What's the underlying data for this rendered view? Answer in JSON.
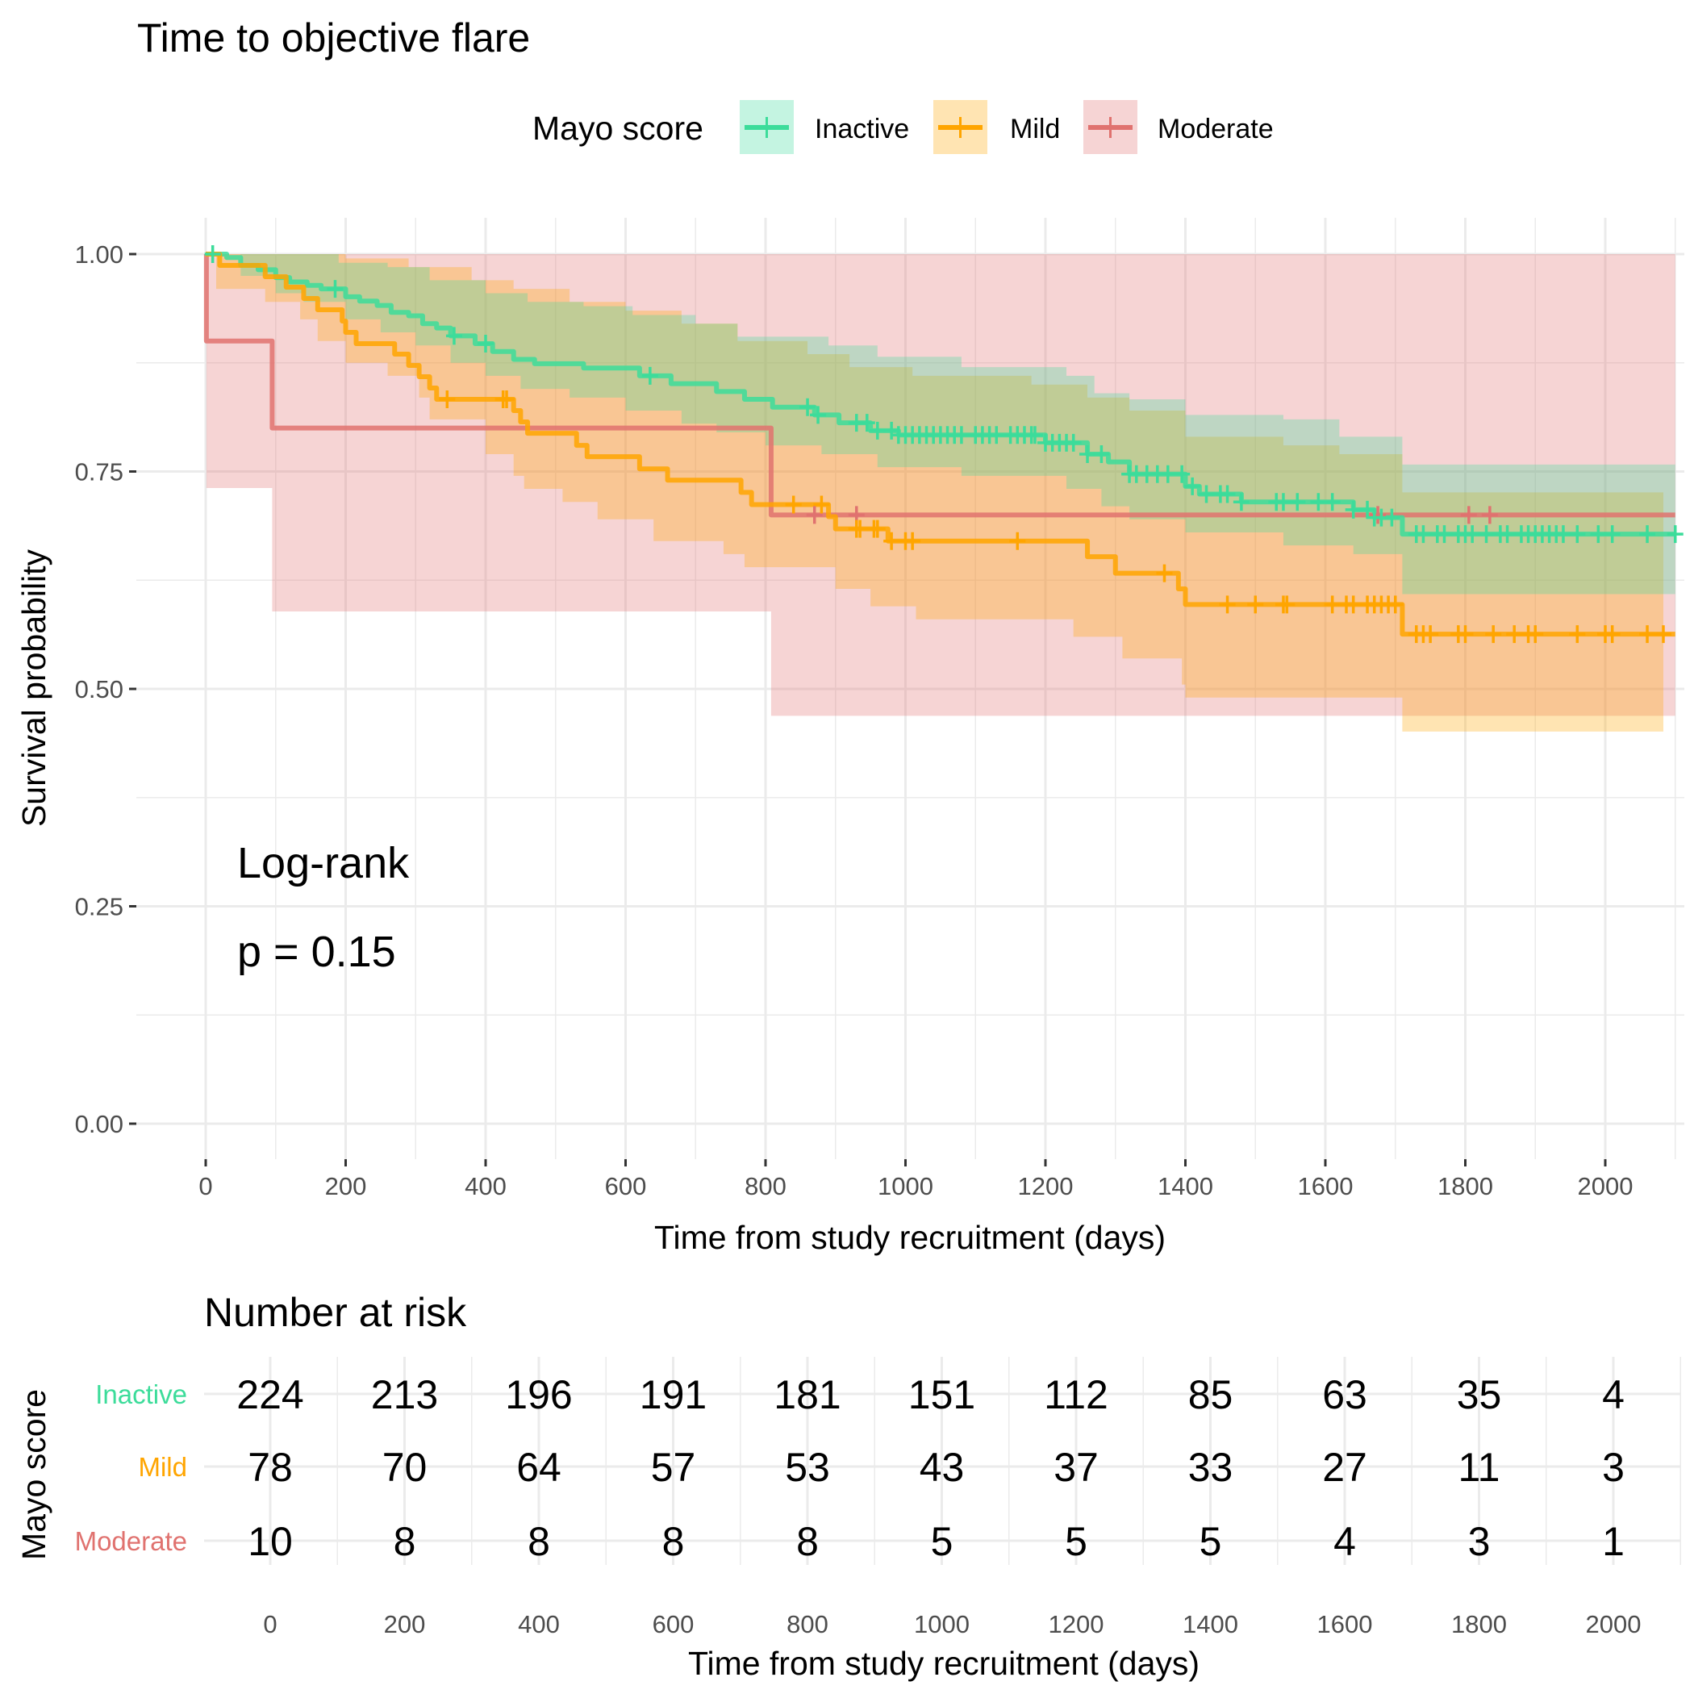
{
  "chart_data": {
    "type": "line",
    "subtype": "kaplan-meier step curves with confidence bands",
    "title": "Time to objective flare",
    "xlabel": "Time from study recruitment (days)",
    "ylabel": "Survival probability",
    "xlim": [
      -100,
      2100
    ],
    "ylim": [
      0,
      1
    ],
    "xticks": [
      0,
      200,
      400,
      600,
      800,
      1000,
      1200,
      1400,
      1600,
      1800,
      2000
    ],
    "xtick_labels": [
      "0",
      "200",
      "400",
      "600",
      "800",
      "1000",
      "1200",
      "1400",
      "1600",
      "1800",
      "2000"
    ],
    "yticks": [
      0,
      0.25,
      0.5,
      0.75,
      1.0
    ],
    "ytick_labels": [
      "0.00",
      "0.25",
      "0.50",
      "0.75",
      "1.00"
    ],
    "grid": true,
    "legend": {
      "title": "Mayo score",
      "position": "top",
      "entries": [
        "Inactive",
        "Mild",
        "Moderate"
      ]
    },
    "annotation": {
      "line1": "Log-rank",
      "line2": "p = 0.15"
    },
    "series": [
      {
        "name": "Inactive",
        "color": "#3CDC9A",
        "steps": [
          [
            0,
            1.0
          ],
          [
            30,
            0.996
          ],
          [
            50,
            0.987
          ],
          [
            75,
            0.982
          ],
          [
            100,
            0.973
          ],
          [
            120,
            0.968
          ],
          [
            145,
            0.964
          ],
          [
            165,
            0.96
          ],
          [
            200,
            0.951
          ],
          [
            220,
            0.946
          ],
          [
            245,
            0.941
          ],
          [
            265,
            0.933
          ],
          [
            290,
            0.929
          ],
          [
            310,
            0.92
          ],
          [
            330,
            0.915
          ],
          [
            350,
            0.906
          ],
          [
            385,
            0.897
          ],
          [
            410,
            0.888
          ],
          [
            440,
            0.879
          ],
          [
            470,
            0.874
          ],
          [
            540,
            0.869
          ],
          [
            620,
            0.86
          ],
          [
            665,
            0.851
          ],
          [
            730,
            0.842
          ],
          [
            770,
            0.833
          ],
          [
            810,
            0.824
          ],
          [
            870,
            0.815
          ],
          [
            905,
            0.806
          ],
          [
            950,
            0.797
          ],
          [
            990,
            0.792
          ],
          [
            1200,
            0.783
          ],
          [
            1260,
            0.77
          ],
          [
            1290,
            0.761
          ],
          [
            1320,
            0.747
          ],
          [
            1400,
            0.733
          ],
          [
            1420,
            0.724
          ],
          [
            1480,
            0.715
          ],
          [
            1640,
            0.706
          ],
          [
            1670,
            0.697
          ],
          [
            1710,
            0.678
          ],
          [
            2100,
            0.678
          ]
        ],
        "ci_upper": [
          [
            0,
            1.0
          ],
          [
            120,
            1.0
          ],
          [
            190,
            0.99
          ],
          [
            260,
            0.985
          ],
          [
            320,
            0.97
          ],
          [
            400,
            0.955
          ],
          [
            460,
            0.945
          ],
          [
            540,
            0.94
          ],
          [
            610,
            0.93
          ],
          [
            700,
            0.92
          ],
          [
            760,
            0.905
          ],
          [
            890,
            0.895
          ],
          [
            960,
            0.882
          ],
          [
            1080,
            0.87
          ],
          [
            1230,
            0.86
          ],
          [
            1270,
            0.84
          ],
          [
            1320,
            0.833
          ],
          [
            1400,
            0.815
          ],
          [
            1540,
            0.81
          ],
          [
            1620,
            0.79
          ],
          [
            1710,
            0.758
          ],
          [
            2100,
            0.758
          ]
        ],
        "ci_lower": [
          [
            0,
            1.0
          ],
          [
            50,
            0.975
          ],
          [
            100,
            0.955
          ],
          [
            140,
            0.945
          ],
          [
            200,
            0.925
          ],
          [
            250,
            0.91
          ],
          [
            300,
            0.895
          ],
          [
            350,
            0.875
          ],
          [
            400,
            0.86
          ],
          [
            450,
            0.845
          ],
          [
            520,
            0.835
          ],
          [
            600,
            0.82
          ],
          [
            680,
            0.805
          ],
          [
            730,
            0.795
          ],
          [
            800,
            0.78
          ],
          [
            880,
            0.77
          ],
          [
            960,
            0.755
          ],
          [
            1080,
            0.745
          ],
          [
            1230,
            0.73
          ],
          [
            1280,
            0.71
          ],
          [
            1320,
            0.695
          ],
          [
            1400,
            0.68
          ],
          [
            1540,
            0.665
          ],
          [
            1640,
            0.655
          ],
          [
            1710,
            0.609
          ],
          [
            2100,
            0.609
          ]
        ],
        "censor_times": [
          10,
          185,
          355,
          400,
          635,
          860,
          875,
          930,
          945,
          960,
          980,
          990,
          1000,
          1010,
          1020,
          1030,
          1040,
          1050,
          1060,
          1070,
          1080,
          1100,
          1110,
          1120,
          1130,
          1150,
          1160,
          1170,
          1180,
          1185,
          1200,
          1210,
          1220,
          1230,
          1240,
          1260,
          1280,
          1320,
          1330,
          1345,
          1360,
          1375,
          1395,
          1410,
          1430,
          1450,
          1460,
          1480,
          1530,
          1540,
          1560,
          1590,
          1610,
          1640,
          1660,
          1670,
          1680,
          1695,
          1730,
          1740,
          1760,
          1770,
          1790,
          1800,
          1810,
          1830,
          1850,
          1860,
          1880,
          1890,
          1900,
          1910,
          1920,
          1930,
          1940,
          1960,
          1990,
          2010,
          2060,
          2100
        ]
      },
      {
        "name": "Mild",
        "color": "#FFA500",
        "steps": [
          [
            0,
            1.0
          ],
          [
            20,
            0.987
          ],
          [
            85,
            0.974
          ],
          [
            115,
            0.962
          ],
          [
            140,
            0.949
          ],
          [
            160,
            0.936
          ],
          [
            195,
            0.923
          ],
          [
            200,
            0.91
          ],
          [
            215,
            0.897
          ],
          [
            270,
            0.885
          ],
          [
            290,
            0.872
          ],
          [
            305,
            0.859
          ],
          [
            320,
            0.846
          ],
          [
            330,
            0.833
          ],
          [
            440,
            0.82
          ],
          [
            450,
            0.807
          ],
          [
            460,
            0.794
          ],
          [
            530,
            0.78
          ],
          [
            545,
            0.767
          ],
          [
            620,
            0.753
          ],
          [
            660,
            0.74
          ],
          [
            765,
            0.726
          ],
          [
            780,
            0.712
          ],
          [
            890,
            0.698
          ],
          [
            900,
            0.684
          ],
          [
            975,
            0.67
          ],
          [
            1260,
            0.652
          ],
          [
            1300,
            0.633
          ],
          [
            1390,
            0.615
          ],
          [
            1400,
            0.597
          ],
          [
            1710,
            0.563
          ],
          [
            2100,
            0.563
          ]
        ],
        "ci_upper": [
          [
            0,
            1.0
          ],
          [
            140,
            1.0
          ],
          [
            200,
            0.995
          ],
          [
            290,
            0.985
          ],
          [
            380,
            0.97
          ],
          [
            440,
            0.96
          ],
          [
            520,
            0.945
          ],
          [
            600,
            0.935
          ],
          [
            680,
            0.92
          ],
          [
            760,
            0.9
          ],
          [
            860,
            0.885
          ],
          [
            920,
            0.87
          ],
          [
            1010,
            0.86
          ],
          [
            1180,
            0.85
          ],
          [
            1260,
            0.835
          ],
          [
            1320,
            0.82
          ],
          [
            1400,
            0.79
          ],
          [
            1540,
            0.78
          ],
          [
            1620,
            0.77
          ],
          [
            1710,
            0.726
          ],
          [
            2100,
            0.726
          ]
        ],
        "ci_lower": [
          [
            0,
            1.0
          ],
          [
            15,
            0.96
          ],
          [
            85,
            0.945
          ],
          [
            135,
            0.925
          ],
          [
            160,
            0.9
          ],
          [
            200,
            0.875
          ],
          [
            260,
            0.86
          ],
          [
            305,
            0.835
          ],
          [
            320,
            0.81
          ],
          [
            400,
            0.77
          ],
          [
            440,
            0.745
          ],
          [
            455,
            0.73
          ],
          [
            510,
            0.715
          ],
          [
            560,
            0.695
          ],
          [
            640,
            0.67
          ],
          [
            740,
            0.655
          ],
          [
            770,
            0.64
          ],
          [
            900,
            0.615
          ],
          [
            950,
            0.595
          ],
          [
            1015,
            0.58
          ],
          [
            1240,
            0.56
          ],
          [
            1310,
            0.535
          ],
          [
            1395,
            0.505
          ],
          [
            1400,
            0.49
          ],
          [
            1710,
            0.451
          ],
          [
            2083,
            0.451
          ]
        ],
        "censor_times": [
          345,
          425,
          430,
          840,
          880,
          930,
          935,
          955,
          960,
          980,
          1000,
          1010,
          1160,
          1370,
          1460,
          1500,
          1540,
          1545,
          1610,
          1630,
          1640,
          1660,
          1670,
          1680,
          1690,
          1700,
          1730,
          1740,
          1750,
          1790,
          1800,
          1840,
          1870,
          1890,
          1900,
          1960,
          2000,
          2010,
          2060,
          2083
        ]
      },
      {
        "name": "Moderate",
        "color": "#E0726F",
        "steps": [
          [
            0,
            1.0
          ],
          [
            1,
            0.9
          ],
          [
            95,
            0.8
          ],
          [
            808,
            0.7
          ],
          [
            2100,
            0.7
          ]
        ],
        "ci_upper": [
          [
            0,
            1.0
          ],
          [
            2100,
            1.0
          ]
        ],
        "ci_lower": [
          [
            0,
            1.0
          ],
          [
            1,
            0.731
          ],
          [
            95,
            0.589
          ],
          [
            808,
            0.469
          ],
          [
            2100,
            0.469
          ]
        ],
        "censor_times": [
          870,
          930,
          1675,
          1805,
          1835
        ]
      }
    ]
  },
  "risk_table": {
    "title": "Number at risk",
    "ylabel": "Mayo score",
    "xlabel": "Time from study recruitment (days)",
    "times": [
      0,
      200,
      400,
      600,
      800,
      1000,
      1200,
      1400,
      1600,
      1800,
      2000
    ],
    "tick_labels": [
      "0",
      "200",
      "400",
      "600",
      "800",
      "1000",
      "1200",
      "1400",
      "1600",
      "1800",
      "2000"
    ],
    "rows": [
      {
        "name": "Inactive",
        "color": "#3CDC9A",
        "values": [
          224,
          213,
          196,
          191,
          181,
          151,
          112,
          85,
          63,
          35,
          4
        ]
      },
      {
        "name": "Mild",
        "color": "#FFA500",
        "values": [
          78,
          70,
          64,
          57,
          53,
          43,
          37,
          33,
          27,
          11,
          3
        ]
      },
      {
        "name": "Moderate",
        "color": "#E0726F",
        "values": [
          10,
          8,
          8,
          8,
          8,
          5,
          5,
          5,
          4,
          3,
          1
        ]
      }
    ]
  }
}
